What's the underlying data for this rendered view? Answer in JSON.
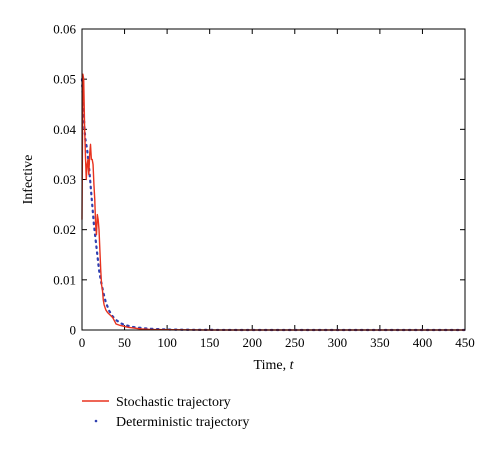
{
  "chart_data": {
    "type": "line",
    "xlabel": "Time,",
    "xlabel_var": "t",
    "ylabel": "Infective",
    "xlim": [
      0,
      450
    ],
    "ylim": [
      0,
      0.06
    ],
    "x_ticks": [
      "0",
      "50",
      "100",
      "150",
      "200",
      "250",
      "300",
      "350",
      "400",
      "450"
    ],
    "y_ticks": [
      "0",
      "0.01",
      "0.02",
      "0.03",
      "0.04",
      "0.05",
      "0.06"
    ],
    "legend_placement": "below",
    "series": [
      {
        "name": "Stochastic trajectory",
        "style": "solid",
        "color": "#e8321e",
        "x": [
          0,
          1,
          2,
          3,
          4,
          5,
          6,
          7,
          8,
          9,
          10,
          11,
          12,
          13,
          14,
          15,
          16,
          17,
          18,
          19,
          20,
          21,
          22,
          23,
          24,
          25,
          26,
          28,
          30,
          33,
          36,
          40,
          45,
          50,
          55,
          60,
          70,
          80,
          100,
          150,
          200,
          250,
          300,
          350,
          400,
          450
        ],
        "y": [
          0.022,
          0.051,
          0.05,
          0.041,
          0.035,
          0.03,
          0.033,
          0.034,
          0.031,
          0.035,
          0.037,
          0.034,
          0.034,
          0.033,
          0.029,
          0.026,
          0.021,
          0.019,
          0.023,
          0.022,
          0.02,
          0.016,
          0.012,
          0.009,
          0.008,
          0.006,
          0.005,
          0.004,
          0.0035,
          0.003,
          0.0025,
          0.0012,
          0.0009,
          0.0007,
          0.0005,
          0.0004,
          0.0002,
          0.0001,
          5e-05,
          0,
          0,
          0,
          0,
          0,
          0,
          0
        ]
      },
      {
        "name": "Deterministic trajectory",
        "style": "dotted",
        "color": "#2f3fb0",
        "x": [
          0,
          1,
          2,
          3,
          4,
          5,
          6,
          8,
          10,
          12,
          14,
          16,
          18,
          20,
          22,
          25,
          28,
          32,
          36,
          40,
          45,
          50,
          60,
          70,
          80,
          100,
          120,
          150,
          200,
          250,
          300,
          350,
          400,
          450
        ],
        "y": [
          0.05,
          0.046,
          0.043,
          0.04,
          0.038,
          0.037,
          0.036,
          0.033,
          0.029,
          0.025,
          0.021,
          0.018,
          0.015,
          0.012,
          0.01,
          0.0075,
          0.0055,
          0.0038,
          0.0027,
          0.002,
          0.0014,
          0.001,
          0.0006,
          0.0004,
          0.00025,
          0.0001,
          5e-05,
          2e-05,
          0,
          0,
          0,
          0,
          0,
          0
        ]
      }
    ]
  }
}
